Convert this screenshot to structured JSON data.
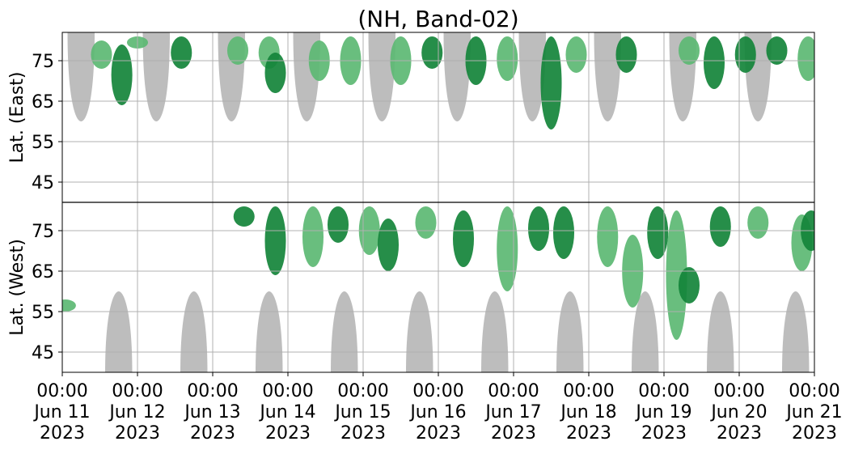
{
  "chart_data": {
    "type": "heatmap",
    "title": "(NH, Band-02)",
    "grid": true,
    "colors": {
      "sunlit_region": "#bdbdbd",
      "activity_high": "#14843a",
      "activity_low": "#5cb873",
      "grid": "#b0b0b0",
      "divider": "#000000"
    },
    "panels": [
      {
        "name": "east",
        "ylabel": "Lat. (East)",
        "ylim": [
          40,
          82
        ],
        "yticks": [
          "45",
          "55",
          "65",
          "75"
        ],
        "ytick_values": [
          45,
          55,
          65,
          75
        ]
      },
      {
        "name": "west",
        "ylabel": "Lat. (West)",
        "ylim": [
          82,
          40
        ],
        "yticks": [
          "75",
          "65",
          "55",
          "45"
        ],
        "ytick_values": [
          75,
          65,
          55,
          45
        ]
      }
    ],
    "xlim": [
      "2023-06-11 00:00",
      "2023-06-21 00:00"
    ],
    "xticks": [
      {
        "date": "2023-06-11",
        "time": "00:00",
        "day": "Jun 11",
        "year": "2023"
      },
      {
        "date": "2023-06-12",
        "time": "00:00",
        "day": "Jun 12",
        "year": "2023"
      },
      {
        "date": "2023-06-13",
        "time": "00:00",
        "day": "Jun 13",
        "year": "2023"
      },
      {
        "date": "2023-06-14",
        "time": "00:00",
        "day": "Jun 14",
        "year": "2023"
      },
      {
        "date": "2023-06-15",
        "time": "00:00",
        "day": "Jun 15",
        "year": "2023"
      },
      {
        "date": "2023-06-16",
        "time": "00:00",
        "day": "Jun 16",
        "year": "2023"
      },
      {
        "date": "2023-06-17",
        "time": "00:00",
        "day": "Jun 17",
        "year": "2023"
      },
      {
        "date": "2023-06-18",
        "time": "00:00",
        "day": "Jun 18",
        "year": "2023"
      },
      {
        "date": "2023-06-19",
        "time": "00:00",
        "day": "Jun 19",
        "year": "2023"
      },
      {
        "date": "2023-06-20",
        "time": "00:00",
        "day": "Jun 20",
        "year": "2023"
      },
      {
        "date": "2023-06-21",
        "time": "00:00",
        "day": "Jun 21",
        "year": "2023"
      }
    ],
    "sunlit_regions": {
      "east_centers": [
        "2023-06-11 06:00",
        "2023-06-12 06:00",
        "2023-06-13 06:00",
        "2023-06-14 06:00",
        "2023-06-15 06:00",
        "2023-06-16 06:00",
        "2023-06-17 06:00",
        "2023-06-18 06:00",
        "2023-06-19 06:00",
        "2023-06-20 06:00"
      ],
      "west_centers": [
        "2023-06-11 18:00",
        "2023-06-12 18:00",
        "2023-06-13 18:00",
        "2023-06-14 18:00",
        "2023-06-15 18:00",
        "2023-06-16 18:00",
        "2023-06-17 18:00",
        "2023-06-18 18:00",
        "2023-06-19 18:00",
        "2023-06-20 18:00"
      ],
      "lat_edge": 60
    },
    "activity_patches": {
      "east": [
        {
          "t": "2023-06-11 12:30",
          "lat": [
            73,
            80
          ],
          "level": "low"
        },
        {
          "t": "2023-06-11 19:00",
          "lat": [
            64,
            79
          ],
          "level": "high"
        },
        {
          "t": "2023-06-12 00:00",
          "lat": [
            78,
            81
          ],
          "level": "low"
        },
        {
          "t": "2023-06-12 14:00",
          "lat": [
            73,
            81
          ],
          "level": "high"
        },
        {
          "t": "2023-06-13 08:00",
          "lat": [
            74,
            81
          ],
          "level": "low"
        },
        {
          "t": "2023-06-13 18:00",
          "lat": [
            73,
            81
          ],
          "level": "low"
        },
        {
          "t": "2023-06-13 20:00",
          "lat": [
            67,
            77
          ],
          "level": "high"
        },
        {
          "t": "2023-06-14 10:00",
          "lat": [
            70,
            80
          ],
          "level": "low"
        },
        {
          "t": "2023-06-14 20:00",
          "lat": [
            69,
            81
          ],
          "level": "low"
        },
        {
          "t": "2023-06-15 12:00",
          "lat": [
            69,
            81
          ],
          "level": "low"
        },
        {
          "t": "2023-06-15 22:00",
          "lat": [
            73,
            81
          ],
          "level": "high"
        },
        {
          "t": "2023-06-16 12:00",
          "lat": [
            69,
            81
          ],
          "level": "high"
        },
        {
          "t": "2023-06-16 22:00",
          "lat": [
            70,
            81
          ],
          "level": "low"
        },
        {
          "t": "2023-06-17 12:00",
          "lat": [
            58,
            81
          ],
          "level": "high"
        },
        {
          "t": "2023-06-17 20:00",
          "lat": [
            72,
            81
          ],
          "level": "low"
        },
        {
          "t": "2023-06-18 12:00",
          "lat": [
            72,
            81
          ],
          "level": "high"
        },
        {
          "t": "2023-06-19 08:00",
          "lat": [
            74,
            81
          ],
          "level": "low"
        },
        {
          "t": "2023-06-19 16:00",
          "lat": [
            68,
            81
          ],
          "level": "high"
        },
        {
          "t": "2023-06-20 02:00",
          "lat": [
            72,
            81
          ],
          "level": "high"
        },
        {
          "t": "2023-06-20 12:00",
          "lat": [
            74,
            81
          ],
          "level": "high"
        },
        {
          "t": "2023-06-20 22:00",
          "lat": [
            70,
            81
          ],
          "level": "low"
        }
      ],
      "west": [
        {
          "t": "2023-06-11 01:00",
          "lat": [
            55,
            58
          ],
          "level": "low"
        },
        {
          "t": "2023-06-13 10:00",
          "lat": [
            76,
            81
          ],
          "level": "high"
        },
        {
          "t": "2023-06-13 20:00",
          "lat": [
            64,
            81
          ],
          "level": "high"
        },
        {
          "t": "2023-06-14 08:00",
          "lat": [
            66,
            81
          ],
          "level": "low"
        },
        {
          "t": "2023-06-14 16:00",
          "lat": [
            72,
            81
          ],
          "level": "high"
        },
        {
          "t": "2023-06-15 02:00",
          "lat": [
            69,
            81
          ],
          "level": "low"
        },
        {
          "t": "2023-06-15 08:00",
          "lat": [
            65,
            78
          ],
          "level": "high"
        },
        {
          "t": "2023-06-15 20:00",
          "lat": [
            73,
            81
          ],
          "level": "low"
        },
        {
          "t": "2023-06-16 08:00",
          "lat": [
            66,
            80
          ],
          "level": "high"
        },
        {
          "t": "2023-06-16 22:00",
          "lat": [
            60,
            81
          ],
          "level": "low"
        },
        {
          "t": "2023-06-17 08:00",
          "lat": [
            70,
            81
          ],
          "level": "high"
        },
        {
          "t": "2023-06-17 16:00",
          "lat": [
            68,
            81
          ],
          "level": "high"
        },
        {
          "t": "2023-06-18 06:00",
          "lat": [
            66,
            81
          ],
          "level": "low"
        },
        {
          "t": "2023-06-18 14:00",
          "lat": [
            56,
            74
          ],
          "level": "low"
        },
        {
          "t": "2023-06-18 22:00",
          "lat": [
            68,
            81
          ],
          "level": "high"
        },
        {
          "t": "2023-06-19 04:00",
          "lat": [
            48,
            80
          ],
          "level": "low"
        },
        {
          "t": "2023-06-19 08:00",
          "lat": [
            57,
            66
          ],
          "level": "high"
        },
        {
          "t": "2023-06-19 18:00",
          "lat": [
            71,
            81
          ],
          "level": "high"
        },
        {
          "t": "2023-06-20 06:00",
          "lat": [
            73,
            81
          ],
          "level": "low"
        },
        {
          "t": "2023-06-20 20:00",
          "lat": [
            65,
            79
          ],
          "level": "low"
        },
        {
          "t": "2023-06-20 23:00",
          "lat": [
            70,
            80
          ],
          "level": "high"
        }
      ]
    }
  }
}
